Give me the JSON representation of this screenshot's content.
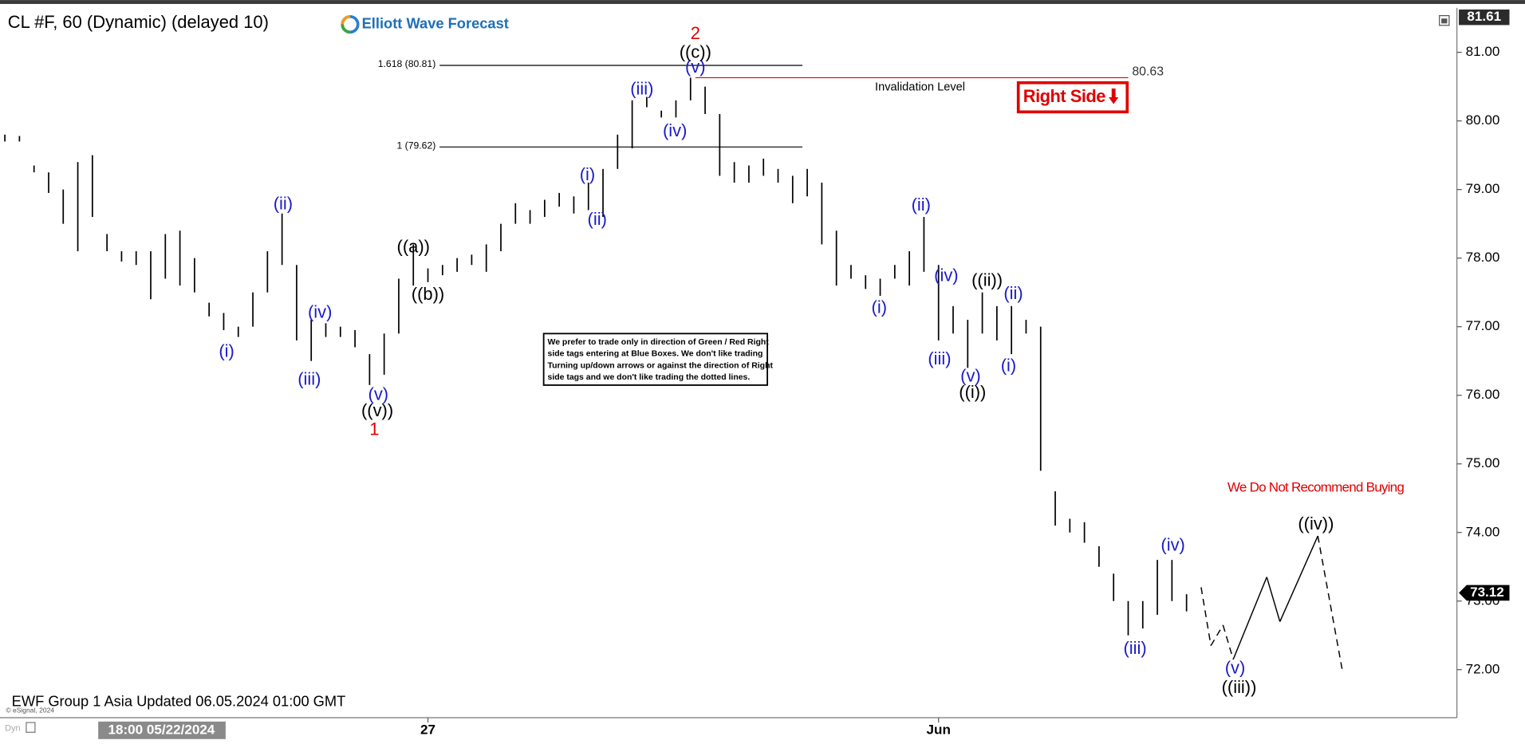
{
  "header": {
    "symbol": "CL #F, 60 (Dynamic) (delayed 10)",
    "logo": "Elliott Wave Forecast",
    "right_side": "Right Side",
    "disclaimer": [
      "We prefer to trade only in direction of Green / Red Right",
      "side tags entering at Blue Boxes. We don't like trading",
      "Turning up/down arrows or against the direction of Right",
      "side tags and we don't like trading the dotted lines."
    ],
    "footer": "EWF Group 1 Asia Updated 06.05.2024 01:00 GMT",
    "copyright": "© eSignal, 2024",
    "mode": "Dyn",
    "cursor_time": "18:00 05/22/2024"
  },
  "chart_data": {
    "type": "ohlc",
    "categories": [
      null,
      null,
      null,
      null,
      null,
      null,
      null,
      null,
      null,
      null,
      null,
      null,
      null,
      null,
      null,
      null,
      null,
      null,
      null,
      null,
      null,
      null,
      null,
      null,
      null,
      null,
      null,
      null,
      null,
      "27",
      null,
      null,
      null,
      null,
      null,
      null,
      null,
      null,
      null,
      null,
      null,
      null,
      null,
      null,
      null,
      null,
      null,
      null,
      null,
      null,
      null,
      null,
      null,
      null,
      null,
      null,
      null,
      null,
      null,
      null,
      null,
      null,
      null,
      null,
      "Jun",
      null,
      null,
      null,
      null,
      null,
      null,
      null,
      null,
      null,
      null,
      null,
      null,
      null,
      null,
      null,
      null,
      null
    ],
    "high": [
      79.8,
      79.78,
      79.35,
      79.25,
      79.0,
      79.4,
      79.5,
      78.35,
      78.1,
      78.1,
      78.1,
      78.35,
      78.4,
      78.0,
      77.35,
      77.2,
      77.0,
      77.5,
      78.1,
      78.65,
      77.9,
      77.1,
      77.05,
      77.0,
      76.95,
      76.6,
      76.9,
      77.7,
      78.2,
      77.85,
      77.9,
      78.0,
      78.05,
      78.2,
      78.5,
      78.8,
      78.7,
      78.85,
      78.95,
      78.9,
      79.1,
      79.3,
      79.8,
      80.3,
      80.35,
      80.15,
      80.3,
      80.63,
      80.5,
      80.1,
      79.4,
      79.35,
      79.45,
      79.3,
      79.2,
      79.3,
      79.1,
      78.4,
      77.9,
      77.75,
      77.7,
      77.9,
      78.1,
      78.6,
      77.9,
      77.3,
      77.1,
      77.5,
      77.3,
      77.3,
      77.1,
      77.0,
      74.6,
      74.2,
      74.15,
      73.8,
      73.4,
      73.0,
      73.0,
      73.6,
      73.6,
      73.1
    ],
    "low": [
      79.7,
      79.7,
      79.25,
      78.95,
      78.5,
      78.1,
      78.6,
      78.1,
      77.95,
      77.9,
      77.4,
      77.7,
      77.6,
      77.5,
      77.15,
      76.95,
      76.85,
      77.0,
      77.5,
      77.9,
      76.8,
      76.5,
      76.85,
      76.85,
      76.7,
      76.15,
      76.3,
      76.9,
      77.6,
      77.65,
      77.75,
      77.8,
      77.9,
      77.8,
      78.1,
      78.5,
      78.5,
      78.6,
      78.75,
      78.65,
      78.7,
      78.6,
      79.3,
      79.6,
      80.2,
      80.05,
      80.05,
      80.3,
      80.1,
      79.2,
      79.1,
      79.1,
      79.2,
      79.1,
      78.8,
      78.9,
      78.2,
      77.6,
      77.7,
      77.55,
      77.45,
      77.7,
      77.6,
      77.8,
      76.8,
      76.9,
      76.4,
      76.9,
      76.8,
      76.6,
      76.9,
      74.9,
      74.1,
      74.0,
      73.85,
      73.5,
      73.0,
      72.5,
      72.6,
      72.8,
      73.0,
      72.85
    ],
    "color": "#000000",
    "ylim": [
      71.3,
      81.62
    ],
    "yticks": [
      {
        "value": 72,
        "label": "72.00"
      },
      {
        "value": 73,
        "label": "73.00"
      },
      {
        "value": 74,
        "label": "74.00"
      },
      {
        "value": 75,
        "label": "75.00"
      },
      {
        "value": 76,
        "label": "76.00"
      },
      {
        "value": 77,
        "label": "77.00"
      },
      {
        "value": 78,
        "label": "78.00"
      },
      {
        "value": 79,
        "label": "79.00"
      },
      {
        "value": 80,
        "label": "80.00"
      },
      {
        "value": 81,
        "label": "81.00"
      }
    ],
    "high_price": 81.61,
    "last_price": 73.12,
    "levels": [
      {
        "label": "1.618 (80.81)",
        "value": 80.81
      },
      {
        "label": "1 (79.62)",
        "value": 79.62
      }
    ],
    "invalidation": {
      "label": "Invalidation Level",
      "value": 80.63,
      "color": "#e00000"
    },
    "annotations": [
      {
        "text": "(i)",
        "x": 15.2,
        "y": 76.63,
        "color": "#1a1acc"
      },
      {
        "text": "(ii)",
        "x": 19.07,
        "y": 78.78,
        "color": "#1a1acc"
      },
      {
        "text": "(iii)",
        "x": 20.87,
        "y": 76.22,
        "color": "#1a1acc"
      },
      {
        "text": "(iv)",
        "x": 21.6,
        "y": 77.2,
        "color": "#1a1acc"
      },
      {
        "text": "(v)",
        "x": 25.6,
        "y": 76.0,
        "color": "#1a1acc"
      },
      {
        "text": "((v))",
        "x": 25.53,
        "y": 75.76,
        "color": "#000000"
      },
      {
        "text": "1",
        "x": 25.33,
        "y": 75.49,
        "color": "#e00000"
      },
      {
        "text": "((a))",
        "x": 28.0,
        "y": 78.15,
        "color": "#000000"
      },
      {
        "text": "((b))",
        "x": 29.0,
        "y": 77.46,
        "color": "#000000"
      },
      {
        "text": "(i)",
        "x": 39.93,
        "y": 79.2,
        "color": "#1a1acc"
      },
      {
        "text": "(ii)",
        "x": 40.6,
        "y": 78.55,
        "color": "#1a1acc"
      },
      {
        "text": "(iii)",
        "x": 43.67,
        "y": 80.45,
        "color": "#1a1acc"
      },
      {
        "text": "(iv)",
        "x": 45.93,
        "y": 79.84,
        "color": "#1a1acc"
      },
      {
        "text": "(v)",
        "x": 47.33,
        "y": 80.77,
        "color": "#1a1acc"
      },
      {
        "text": "((c))",
        "x": 47.33,
        "y": 80.99,
        "color": "#000000"
      },
      {
        "text": "2",
        "x": 47.33,
        "y": 81.26,
        "color": "#e00000"
      },
      {
        "text": "(i)",
        "x": 59.93,
        "y": 77.27,
        "color": "#1a1acc"
      },
      {
        "text": "(ii)",
        "x": 62.8,
        "y": 78.76,
        "color": "#1a1acc"
      },
      {
        "text": "(iv)",
        "x": 64.53,
        "y": 77.73,
        "color": "#1a1acc"
      },
      {
        "text": "(iii)",
        "x": 64.07,
        "y": 76.52,
        "color": "#1a1acc"
      },
      {
        "text": "(v)",
        "x": 66.2,
        "y": 76.27,
        "color": "#1a1acc"
      },
      {
        "text": "((i))",
        "x": 66.33,
        "y": 76.03,
        "color": "#000000"
      },
      {
        "text": "((ii))",
        "x": 67.33,
        "y": 77.66,
        "color": "#000000"
      },
      {
        "text": "(ii)",
        "x": 69.13,
        "y": 77.47,
        "color": "#1a1acc"
      },
      {
        "text": "(i)",
        "x": 68.8,
        "y": 76.42,
        "color": "#1a1acc"
      },
      {
        "text": "(iii)",
        "x": 77.47,
        "y": 72.3,
        "color": "#1a1acc"
      },
      {
        "text": "(iv)",
        "x": 80.07,
        "y": 73.8,
        "color": "#1a1acc"
      },
      {
        "text": "(v)",
        "x": 84.33,
        "y": 72.01,
        "color": "#1a1acc"
      },
      {
        "text": "((iii))",
        "x": 84.6,
        "y": 71.73,
        "color": "#000000"
      },
      {
        "text": "((iv))",
        "x": 89.87,
        "y": 74.11,
        "color": "#000000"
      },
      {
        "text": "We Do Not Recommend Buying",
        "x": 89.87,
        "y": 74.65,
        "color": "#e00000"
      }
    ],
    "projection": {
      "x": [
        82.0,
        82.67,
        83.5,
        84.2,
        86.5,
        87.4,
        90.0,
        91.67
      ],
      "y": [
        73.2,
        72.35,
        72.65,
        72.15,
        73.35,
        72.7,
        73.95,
        72.0
      ],
      "dashed": [
        true,
        true,
        true,
        false,
        false,
        false,
        true
      ]
    }
  }
}
